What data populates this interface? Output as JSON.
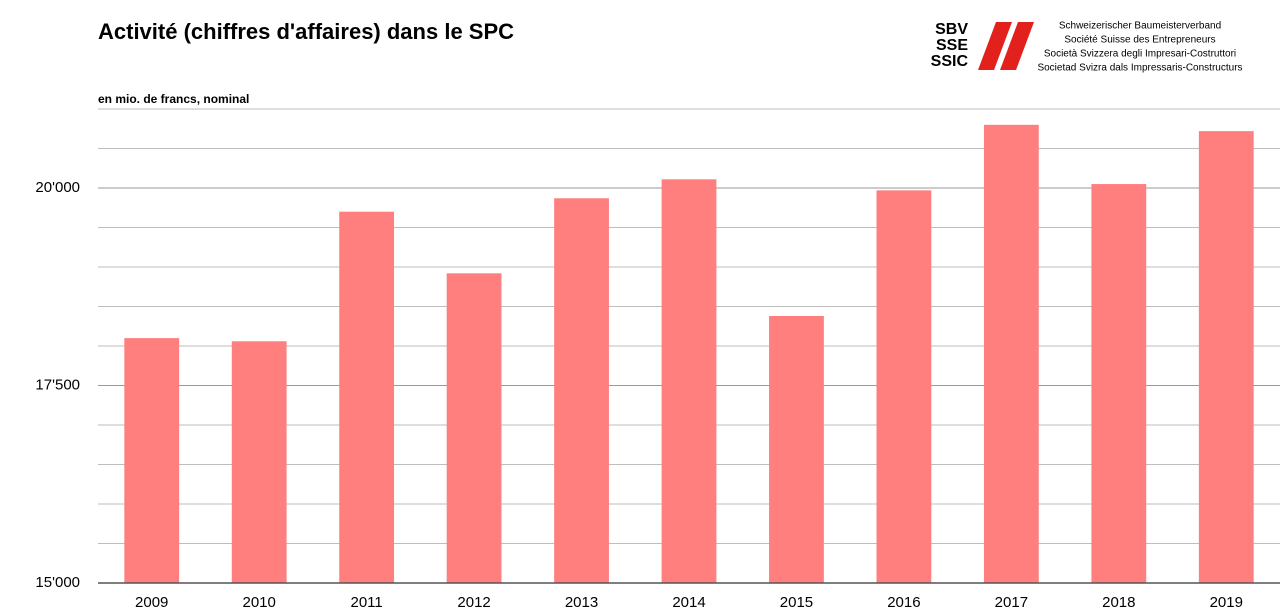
{
  "chart_data": {
    "type": "bar",
    "title": "Activité (chiffres d'affaires) dans le SPC",
    "subtitle": "en mio. de francs, nominal",
    "logo": {
      "abbreviations": [
        "SBV",
        "SSE",
        "SSIC"
      ],
      "names": [
        "Schweizerischer Baumeisterverband",
        "Société Suisse des Entrepreneurs",
        "Società Svizzera degli Impresari-Costruttori",
        "Societad Svizra dals Impressaris-Constructurs"
      ]
    },
    "categories": [
      "2009",
      "2010",
      "2011",
      "2012",
      "2013",
      "2014",
      "2015",
      "2016",
      "2017",
      "2018",
      "2019"
    ],
    "values": [
      18100,
      18060,
      19700,
      18920,
      19870,
      20110,
      18380,
      19970,
      20800,
      20050,
      20720
    ],
    "color": "#ff7f7f",
    "ylim": [
      15000,
      21000
    ],
    "yticks": [
      {
        "value": 15000,
        "label": "15'000"
      },
      {
        "value": 17500,
        "label": "17'500"
      },
      {
        "value": 20000,
        "label": "20'000"
      }
    ],
    "minor_yticks": [
      15500,
      16000,
      16500,
      17000,
      18000,
      18500,
      19000,
      19500,
      20500,
      21000
    ],
    "grid": true
  }
}
